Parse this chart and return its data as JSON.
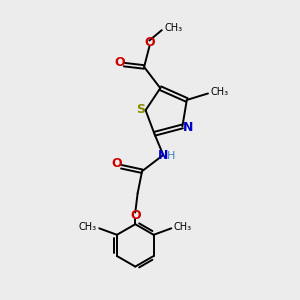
{
  "bg_color": "#ececec",
  "bond_color": "#000000",
  "sulfur_color": "#8b8b00",
  "nitrogen_color": "#0000cc",
  "oxygen_color": "#cc0000",
  "hydrogen_color": "#4080c0",
  "line_width": 1.4,
  "fig_width": 3.0,
  "fig_height": 3.0,
  "dpi": 100,
  "xlim": [
    0,
    10
  ],
  "ylim": [
    0,
    10
  ]
}
